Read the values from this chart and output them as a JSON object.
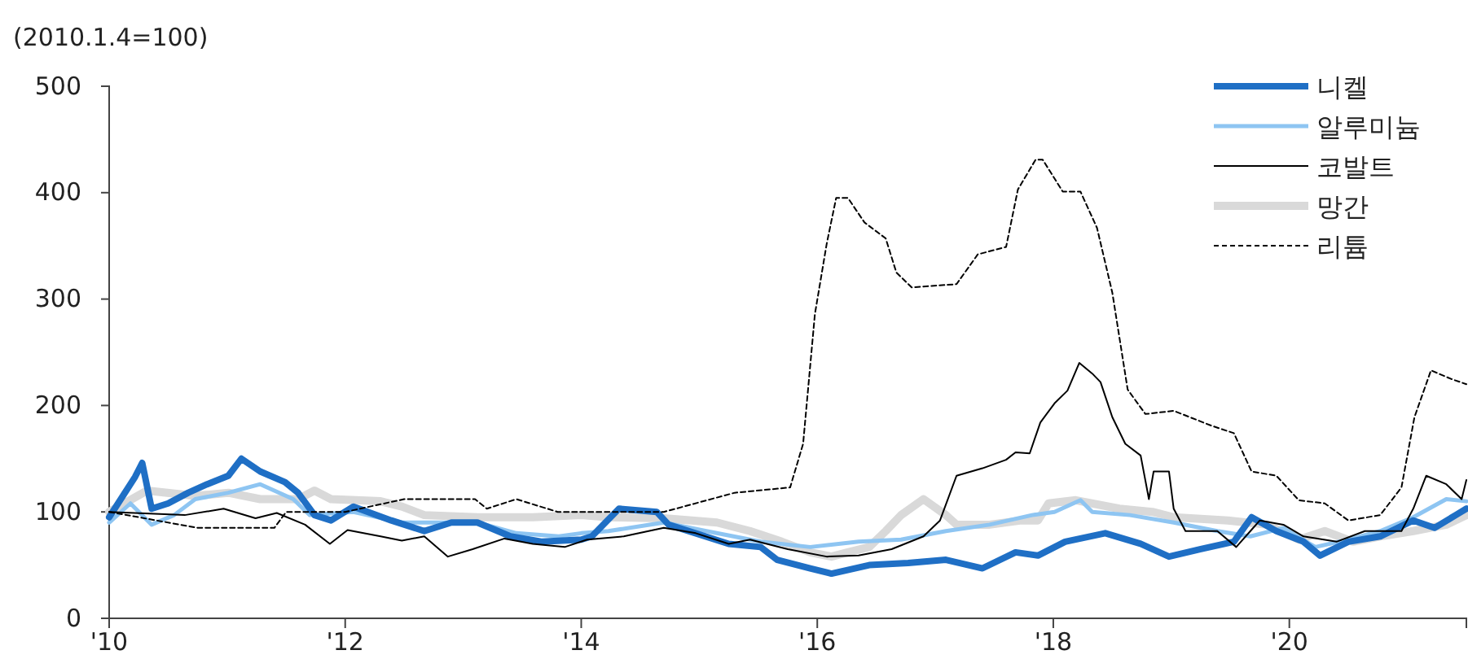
{
  "chart_data": {
    "type": "line",
    "ylabel": "(2010.1.4=100)",
    "xlim": [
      2010,
      2021.5
    ],
    "ylim": [
      0,
      500
    ],
    "xticks": [
      {
        "value": 2010,
        "label": "'10"
      },
      {
        "value": 2012,
        "label": "'12"
      },
      {
        "value": 2014,
        "label": "'14"
      },
      {
        "value": 2016,
        "label": "'16"
      },
      {
        "value": 2018,
        "label": "'18"
      },
      {
        "value": 2020,
        "label": "'20"
      }
    ],
    "yticks": [
      0,
      100,
      200,
      300,
      400,
      500
    ],
    "grid": false,
    "legend": "top right",
    "series": [
      {
        "name": "니켈",
        "color": "#1f6fc5",
        "line_style": "solid",
        "x": [
          2010,
          2010.22,
          2010.28,
          2010.36,
          2010.5,
          2010.67,
          2010.83,
          2011.01,
          2011.12,
          2011.28,
          2011.49,
          2011.6,
          2011.74,
          2011.88,
          2012.07,
          2012.39,
          2012.67,
          2012.9,
          2013.12,
          2013.4,
          2013.67,
          2014,
          2014.09,
          2014.32,
          2014.64,
          2014.74,
          2015.25,
          2015.52,
          2015.66,
          2015.94,
          2016.12,
          2016.44,
          2016.77,
          2017.09,
          2017.4,
          2017.68,
          2017.87,
          2018.1,
          2018.44,
          2018.74,
          2018.98,
          2019.25,
          2019.53,
          2019.68,
          2019.89,
          2020.12,
          2020.26,
          2020.5,
          2020.77,
          2021.05,
          2021.23,
          2021.41,
          2021.5
        ],
        "values": [
          95,
          133,
          146,
          103,
          108,
          118,
          126,
          134,
          150,
          138,
          128,
          118,
          97,
          92,
          105,
          92,
          82,
          90,
          90,
          77,
          72,
          74,
          77,
          103,
          100,
          88,
          70,
          67,
          55,
          47,
          42,
          50,
          52,
          55,
          47,
          62,
          59,
          72,
          80,
          70,
          58,
          65,
          72,
          95,
          82,
          72,
          59,
          72,
          77,
          92,
          85,
          97,
          103
        ]
      },
      {
        "name": "알루미늄",
        "color": "#8ec5f2",
        "line_style": "solid",
        "x": [
          2010,
          2010.18,
          2010.36,
          2010.55,
          2010.73,
          2011.01,
          2011.28,
          2011.56,
          2011.7,
          2012.07,
          2012.48,
          2012.76,
          2013.12,
          2013.45,
          2013.81,
          2014,
          2014.23,
          2014.7,
          2015.06,
          2015.52,
          2015.94,
          2016.35,
          2016.71,
          2017.09,
          2017.46,
          2017.82,
          2018.01,
          2018.23,
          2018.33,
          2018.65,
          2019.02,
          2019.39,
          2019.67,
          2019.95,
          2020.22,
          2020.5,
          2020.77,
          2021.05,
          2021.33,
          2021.5
        ],
        "values": [
          90,
          108,
          88,
          97,
          112,
          118,
          126,
          112,
          97,
          100,
          90,
          90,
          90,
          80,
          77,
          80,
          82,
          90,
          82,
          72,
          67,
          72,
          74,
          82,
          88,
          97,
          100,
          111,
          100,
          97,
          90,
          82,
          77,
          85,
          67,
          74,
          82,
          95,
          112,
          110
        ]
      },
      {
        "name": "코발트",
        "color": "#000000",
        "line_style": "solid",
        "x": [
          2010,
          2010.64,
          2010.97,
          2011.24,
          2011.42,
          2011.66,
          2011.87,
          2012.02,
          2012.3,
          2012.48,
          2012.67,
          2012.87,
          2013.08,
          2013.35,
          2013.59,
          2013.86,
          2014.05,
          2014.36,
          2014.7,
          2014.97,
          2015.25,
          2015.43,
          2015.75,
          2016.08,
          2016.35,
          2016.63,
          2016.9,
          2017.04,
          2017.18,
          2017.4,
          2017.6,
          2017.68,
          2017.8,
          2017.89,
          2018.01,
          2018.12,
          2018.22,
          2018.33,
          2018.4,
          2018.5,
          2018.61,
          2018.74,
          2018.81,
          2018.85,
          2018.98,
          2019.02,
          2019.12,
          2019.39,
          2019.55,
          2019.67,
          2019.75,
          2019.95,
          2020.12,
          2020.4,
          2020.64,
          2020.95,
          2021.05,
          2021.16,
          2021.33,
          2021.46,
          2021.5
        ],
        "values": [
          100,
          97,
          103,
          94,
          99,
          88,
          70,
          83,
          77,
          73,
          77,
          58,
          65,
          75,
          70,
          67,
          74,
          77,
          85,
          80,
          70,
          74,
          65,
          58,
          59,
          65,
          77,
          92,
          134,
          141,
          149,
          156,
          155,
          184,
          202,
          214,
          240,
          230,
          222,
          189,
          164,
          153,
          112,
          138,
          138,
          103,
          82,
          82,
          67,
          82,
          92,
          88,
          77,
          72,
          82,
          82,
          103,
          134,
          126,
          112,
          130
        ]
      },
      {
        "name": "망간",
        "color": "#d9d9d9",
        "line_style": "solid",
        "x": [
          2010,
          2010.32,
          2010.73,
          2011.01,
          2011.28,
          2011.6,
          2011.74,
          2011.88,
          2012.3,
          2012.48,
          2012.67,
          2013.12,
          2013.59,
          2014,
          2014.23,
          2014.7,
          2015.15,
          2015.43,
          2015.7,
          2015.94,
          2016.12,
          2016.26,
          2016.44,
          2016.58,
          2016.71,
          2016.9,
          2017.09,
          2017.18,
          2017.46,
          2017.73,
          2017.87,
          2017.96,
          2018.19,
          2018.56,
          2018.84,
          2019.02,
          2019.48,
          2019.81,
          2020.08,
          2020.3,
          2020.54,
          2020.77,
          2021.05,
          2021.33,
          2021.5
        ],
        "values": [
          100,
          120,
          115,
          118,
          112,
          112,
          120,
          112,
          110,
          105,
          97,
          95,
          95,
          97,
          95,
          94,
          90,
          82,
          72,
          62,
          58,
          62,
          67,
          82,
          97,
          112,
          97,
          88,
          88,
          92,
          92,
          108,
          111,
          103,
          100,
          95,
          92,
          88,
          74,
          82,
          72,
          77,
          82,
          88,
          97
        ]
      },
      {
        "name": "리튬",
        "color": "#000000",
        "line_style": "dashed",
        "x": [
          2010,
          2010.75,
          2011.4,
          2011.5,
          2012,
          2012.5,
          2013.1,
          2013.2,
          2013.45,
          2013.8,
          2014.7,
          2015.3,
          2015.77,
          2015.88,
          2015.98,
          2016.08,
          2016.16,
          2016.26,
          2016.4,
          2016.58,
          2016.67,
          2016.8,
          2017.18,
          2017.36,
          2017.6,
          2017.7,
          2017.85,
          2017.91,
          2018.08,
          2018.23,
          2018.37,
          2018.5,
          2018.63,
          2018.78,
          2019.02,
          2019.34,
          2019.53,
          2019.68,
          2019.89,
          2020.08,
          2020.3,
          2020.5,
          2020.77,
          2020.95,
          2021.06,
          2021.2,
          2021.37,
          2021.5
        ],
        "values": [
          100,
          85,
          85,
          100,
          100,
          112,
          112,
          103,
          112,
          100,
          100,
          118,
          123,
          164,
          286,
          352,
          395,
          395,
          372,
          357,
          325,
          311,
          314,
          342,
          349,
          403,
          431,
          431,
          401,
          401,
          367,
          306,
          215,
          192,
          195,
          181,
          174,
          138,
          134,
          111,
          108,
          92,
          97,
          123,
          189,
          233,
          225,
          220
        ]
      }
    ]
  }
}
